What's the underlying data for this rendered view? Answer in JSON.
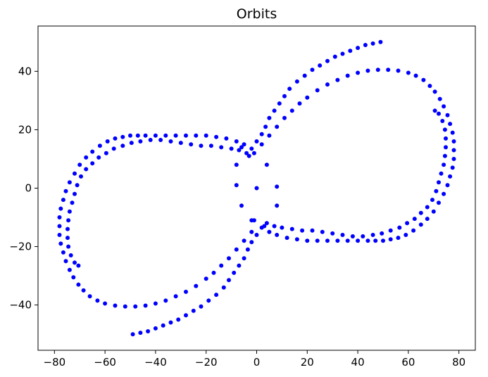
{
  "chart_data": {
    "type": "scatter",
    "title": "Orbits",
    "xlabel": "",
    "ylabel": "",
    "xlim": [
      -86.5,
      86.5
    ],
    "ylim": [
      -55.5,
      55.5
    ],
    "xticks": [
      -80,
      -60,
      -40,
      -20,
      0,
      20,
      40,
      60,
      80
    ],
    "yticks": [
      -40,
      -20,
      0,
      20,
      40
    ],
    "grid": false,
    "marker_color": "#0000ff",
    "series": [
      {
        "points": [
          [
            0,
            0
          ],
          [
            49,
            50
          ],
          [
            46,
            49.5
          ],
          [
            43,
            49
          ],
          [
            40,
            48
          ],
          [
            37,
            47
          ],
          [
            34,
            46
          ],
          [
            31,
            45
          ],
          [
            28,
            43.5
          ],
          [
            25,
            42
          ],
          [
            22,
            40.5
          ],
          [
            19,
            38.5
          ],
          [
            16,
            36.5
          ],
          [
            13,
            34
          ],
          [
            11,
            31.5
          ],
          [
            9,
            29
          ],
          [
            7,
            26.5
          ],
          [
            5,
            24
          ],
          [
            3.5,
            21
          ],
          [
            2,
            18.5
          ],
          [
            0,
            16
          ],
          [
            -2,
            13.5
          ],
          [
            -3,
            11
          ],
          [
            48,
            40.5
          ],
          [
            44,
            40.2
          ],
          [
            40,
            39.5
          ],
          [
            36,
            38.5
          ],
          [
            32,
            37
          ],
          [
            28,
            35.5
          ],
          [
            24,
            33.5
          ],
          [
            20,
            31
          ],
          [
            17,
            29
          ],
          [
            14,
            26.5
          ],
          [
            11,
            24
          ],
          [
            8,
            21
          ],
          [
            5,
            18
          ],
          [
            2,
            15
          ],
          [
            -1,
            12
          ],
          [
            52,
            40.5
          ],
          [
            56,
            40.2
          ],
          [
            60,
            39.5
          ],
          [
            63,
            38.5
          ],
          [
            66,
            37
          ],
          [
            68.5,
            35
          ],
          [
            70.5,
            33
          ],
          [
            72.5,
            30.5
          ],
          [
            74,
            28
          ],
          [
            75.5,
            25
          ],
          [
            76.5,
            22
          ],
          [
            77.5,
            19
          ],
          [
            78,
            16
          ],
          [
            78,
            13
          ],
          [
            78,
            10
          ],
          [
            77.5,
            7
          ],
          [
            76.5,
            4
          ],
          [
            75.5,
            1
          ],
          [
            74,
            -2
          ],
          [
            72,
            -5
          ],
          [
            70,
            -8
          ],
          [
            67.5,
            -10.5
          ],
          [
            65,
            -12.5
          ],
          [
            62,
            -14.5
          ],
          [
            59,
            -16
          ],
          [
            56,
            -17
          ],
          [
            53,
            -17.5
          ],
          [
            50,
            -18
          ],
          [
            47,
            -18
          ],
          [
            44,
            -18
          ],
          [
            40,
            -18
          ],
          [
            36,
            -18
          ],
          [
            32,
            -18
          ],
          [
            28,
            -18
          ],
          [
            24,
            -18
          ],
          [
            20,
            -18
          ],
          [
            16,
            -17.5
          ],
          [
            12,
            -17
          ],
          [
            8,
            -16
          ],
          [
            5,
            -15
          ],
          [
            3,
            -13
          ],
          [
            70.5,
            26.5
          ],
          [
            72,
            25.5
          ],
          [
            73.5,
            23
          ],
          [
            74.5,
            20
          ],
          [
            74.8,
            17
          ],
          [
            74.8,
            14
          ],
          [
            74.5,
            11
          ],
          [
            74,
            8
          ],
          [
            73,
            5
          ],
          [
            72,
            2
          ],
          [
            71,
            -1
          ],
          [
            69.5,
            -4
          ],
          [
            67.5,
            -6.5
          ],
          [
            65,
            -8.5
          ],
          [
            62.5,
            -10.5
          ],
          [
            59.5,
            -12
          ],
          [
            56.5,
            -13.5
          ],
          [
            53,
            -14.5
          ],
          [
            49.5,
            -15.5
          ],
          [
            46,
            -16
          ],
          [
            42,
            -16.5
          ],
          [
            38,
            -16.5
          ],
          [
            34,
            -16
          ],
          [
            30,
            -15.5
          ],
          [
            26,
            -15
          ],
          [
            22,
            -14.5
          ],
          [
            18,
            -14.5
          ],
          [
            14,
            -14
          ],
          [
            10,
            -13.5
          ],
          [
            7,
            -13
          ],
          [
            8,
            0.5
          ],
          [
            8,
            -6
          ],
          [
            4,
            8
          ],
          [
            4,
            -12
          ],
          [
            -8,
            1
          ],
          [
            -8,
            8
          ],
          [
            -6,
            -6
          ],
          [
            -6,
            14
          ],
          [
            -1,
            -11
          ],
          [
            -4,
            12
          ],
          [
            -2,
            -11
          ],
          [
            -49,
            -50
          ],
          [
            -46,
            -49.5
          ],
          [
            -43,
            -49
          ],
          [
            -40,
            -48
          ],
          [
            -37,
            -47
          ],
          [
            -34,
            -46
          ],
          [
            -31,
            -45
          ],
          [
            -28,
            -43.5
          ],
          [
            -25,
            -42
          ],
          [
            -22,
            -40.5
          ],
          [
            -19,
            -38.5
          ],
          [
            -16,
            -36.5
          ],
          [
            -13,
            -34
          ],
          [
            -11,
            -31.5
          ],
          [
            -9,
            -29
          ],
          [
            -7,
            -26.5
          ],
          [
            -5,
            -24
          ],
          [
            -3.5,
            -21
          ],
          [
            -2,
            -18.5
          ],
          [
            0,
            -16
          ],
          [
            2,
            -13.5
          ],
          [
            -48,
            -40.5
          ],
          [
            -44,
            -40.2
          ],
          [
            -40,
            -39.5
          ],
          [
            -36,
            -38.5
          ],
          [
            -32,
            -37
          ],
          [
            -28,
            -35.5
          ],
          [
            -24,
            -33.5
          ],
          [
            -20,
            -31
          ],
          [
            -17,
            -29
          ],
          [
            -14,
            -26.5
          ],
          [
            -11,
            -24
          ],
          [
            -8,
            -21
          ],
          [
            -5,
            -18
          ],
          [
            -2,
            -15
          ],
          [
            -52,
            -40.5
          ],
          [
            -56,
            -40.2
          ],
          [
            -60,
            -39.5
          ],
          [
            -63,
            -38.5
          ],
          [
            -66,
            -37
          ],
          [
            -68.5,
            -35
          ],
          [
            -70.5,
            -33
          ],
          [
            -72.5,
            -30.5
          ],
          [
            -74,
            -28
          ],
          [
            -75.5,
            -25
          ],
          [
            -76.5,
            -22
          ],
          [
            -77.5,
            -19
          ],
          [
            -78,
            -16
          ],
          [
            -78,
            -13
          ],
          [
            -78,
            -10
          ],
          [
            -77.5,
            -7
          ],
          [
            -76.5,
            -4
          ],
          [
            -75.5,
            -1
          ],
          [
            -74,
            2
          ],
          [
            -72,
            5
          ],
          [
            -70,
            8
          ],
          [
            -67.5,
            10.5
          ],
          [
            -65,
            12.5
          ],
          [
            -62,
            14.5
          ],
          [
            -59,
            16
          ],
          [
            -56,
            17
          ],
          [
            -53,
            17.5
          ],
          [
            -50,
            18
          ],
          [
            -47,
            18
          ],
          [
            -44,
            18
          ],
          [
            -40,
            18
          ],
          [
            -36,
            18
          ],
          [
            -32,
            18
          ],
          [
            -28,
            18
          ],
          [
            -24,
            18
          ],
          [
            -20,
            18
          ],
          [
            -16,
            17.5
          ],
          [
            -12,
            17
          ],
          [
            -8,
            16
          ],
          [
            -5,
            15
          ],
          [
            -70.5,
            -26.5
          ],
          [
            -72,
            -25.5
          ],
          [
            -73.5,
            -23
          ],
          [
            -74.5,
            -20
          ],
          [
            -74.8,
            -17
          ],
          [
            -74.8,
            -14
          ],
          [
            -74.5,
            -11
          ],
          [
            -74,
            -8
          ],
          [
            -73,
            -5
          ],
          [
            -72,
            -2
          ],
          [
            -71,
            1
          ],
          [
            -69.5,
            4
          ],
          [
            -67.5,
            6.5
          ],
          [
            -65,
            8.5
          ],
          [
            -62.5,
            10.5
          ],
          [
            -59.5,
            12
          ],
          [
            -56.5,
            13.5
          ],
          [
            -53,
            14.5
          ],
          [
            -49.5,
            15.5
          ],
          [
            -46,
            16
          ],
          [
            -42,
            16.5
          ],
          [
            -38,
            16.5
          ],
          [
            -34,
            16
          ],
          [
            -30,
            15.5
          ],
          [
            -26,
            15
          ],
          [
            -22,
            14.5
          ],
          [
            -18,
            14.5
          ],
          [
            -14,
            14
          ],
          [
            -10,
            13.5
          ],
          [
            -7,
            13
          ]
        ]
      }
    ]
  }
}
